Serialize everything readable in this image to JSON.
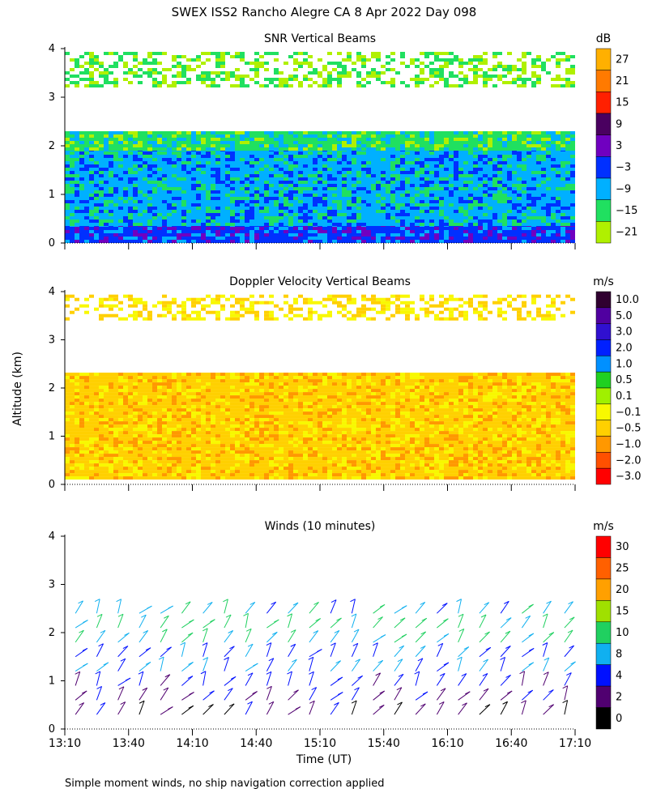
{
  "chart_data": {
    "title": "SWEX ISS2 Rancho Alegre CA    8 Apr 2022 Day 098",
    "shared_ylabel": "Altitude (km)",
    "xlabel": "Time (UT)",
    "x_ticks": [
      "13:10",
      "13:40",
      "14:10",
      "14:40",
      "15:10",
      "15:40",
      "16:10",
      "16:40",
      "17:10"
    ],
    "xlim_minutes_utc": [
      790,
      1030
    ],
    "footnote": "Simple moment winds, no ship navigation correction applied",
    "panels": [
      {
        "type": "heatmap",
        "title": "SNR Vertical Beams",
        "unit": "dB",
        "ylim_km": [
          0,
          4
        ],
        "y_ticks": [
          "0",
          "1",
          "2",
          "3",
          "4"
        ],
        "colorbar": {
          "labels": [
            "27",
            "21",
            "15",
            "9",
            "3",
            "−3",
            "−9",
            "−15",
            "−21"
          ],
          "colors": [
            "#ffb000",
            "#ff7a00",
            "#ff2000",
            "#4a0060",
            "#7000c0",
            "#0030ff",
            "#00b0ff",
            "#20e060",
            "#b0f000"
          ]
        },
        "layers": [
          {
            "from_km": 0.0,
            "to_km": 0.35,
            "level": "−3",
            "note": "strong near-surface layer, red/purple after 16:30"
          },
          {
            "from_km": 0.35,
            "to_km": 1.9,
            "level": "−9",
            "note": "blue to cyan banded layer"
          },
          {
            "from_km": 1.9,
            "to_km": 2.3,
            "level": "−15",
            "note": "green top of layer"
          },
          {
            "from_km": 3.2,
            "to_km": 3.9,
            "level": "−21",
            "note": "patchy weak echoes aloft"
          }
        ]
      },
      {
        "type": "heatmap",
        "title": "Doppler Velocity Vertical Beams",
        "unit": "m/s",
        "ylim_km": [
          0,
          4
        ],
        "y_ticks": [
          "0",
          "1",
          "2",
          "3",
          "4"
        ],
        "colorbar": {
          "labels": [
            "10.0",
            "5.0",
            "3.0",
            "2.0",
            "1.0",
            "0.5",
            "0.1",
            "−0.1",
            "−0.5",
            "−1.0",
            "−2.0",
            "−3.0"
          ],
          "colors": [
            "#300030",
            "#5000a0",
            "#3010d0",
            "#0020ff",
            "#0090ff",
            "#20d020",
            "#a0f000",
            "#f8f800",
            "#ffd000",
            "#ff9800",
            "#ff5000",
            "#ff0000"
          ]
        },
        "layers": [
          {
            "from_km": 0.1,
            "to_km": 2.3,
            "level": "−0.5",
            "note": "mostly weak downward motion"
          },
          {
            "from_km": 3.4,
            "to_km": 3.9,
            "level": "−0.5",
            "note": "patchy"
          }
        ]
      },
      {
        "type": "barbs",
        "title": "Winds (10 minutes)",
        "unit": "m/s",
        "ylim_km": [
          0,
          4
        ],
        "y_ticks": [
          "0",
          "1",
          "2",
          "3",
          "4"
        ],
        "colorbar": {
          "labels": [
            "30",
            "25",
            "20",
            "15",
            "10",
            "8",
            "4",
            "2",
            "0"
          ],
          "colors": [
            "#ff0000",
            "#ff6000",
            "#ffa000",
            "#a0e000",
            "#20d060",
            "#10b0f0",
            "#0010ff",
            "#500070",
            "#000000"
          ]
        },
        "profile_heights_km": [
          0.3,
          0.6,
          0.9,
          1.2,
          1.5,
          1.8,
          2.1,
          2.4
        ],
        "typical_speed_by_height_ms": [
          3,
          4,
          5,
          8,
          7,
          10,
          11,
          9
        ]
      }
    ]
  }
}
